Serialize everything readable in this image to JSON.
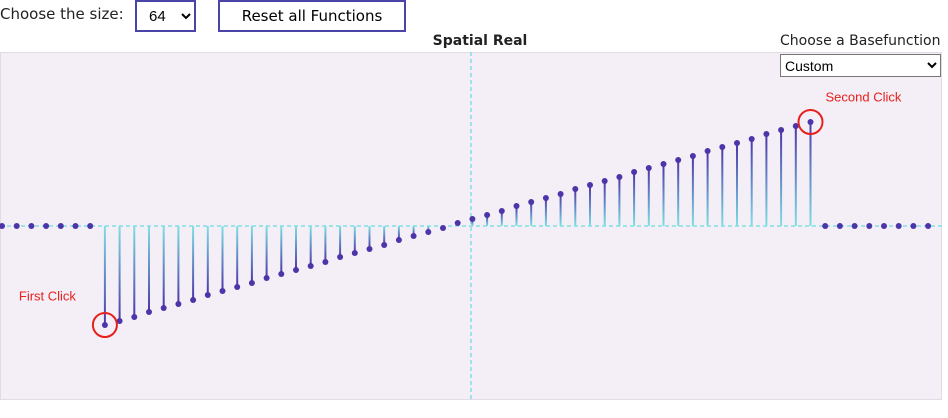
{
  "controls": {
    "size_label": "Choose the size:",
    "size": 64,
    "reset_button": "Reset all Functions",
    "basefunction_label": "Choose a Basefunction",
    "basefunction": "Custom"
  },
  "chart_data": {
    "type": "stem",
    "title": "Spatial Real",
    "annotations": [
      "First Click",
      "Second Click"
    ],
    "values": [
      0,
      0,
      0,
      0,
      0,
      0,
      0,
      -0.99,
      -0.95,
      -0.91,
      -0.86,
      -0.82,
      -0.78,
      -0.74,
      -0.69,
      -0.65,
      -0.61,
      -0.57,
      -0.52,
      -0.48,
      -0.44,
      -0.4,
      -0.36,
      -0.31,
      -0.27,
      -0.23,
      -0.19,
      -0.14,
      -0.1,
      -0.06,
      -0.02,
      0.03,
      0.07,
      0.11,
      0.15,
      0.2,
      0.24,
      0.28,
      0.32,
      0.37,
      0.41,
      0.45,
      0.49,
      0.54,
      0.58,
      0.62,
      0.66,
      0.7,
      0.75,
      0.79,
      0.83,
      0.87,
      0.92,
      0.96,
      1.0,
      1.04,
      0,
      0,
      0,
      0,
      0,
      0,
      0,
      0
    ],
    "ylim": [
      -1.74,
      1.74
    ],
    "color": "#4b35a8",
    "stem_color": "#7fe0e4",
    "annotation_color": "#e8201c"
  }
}
